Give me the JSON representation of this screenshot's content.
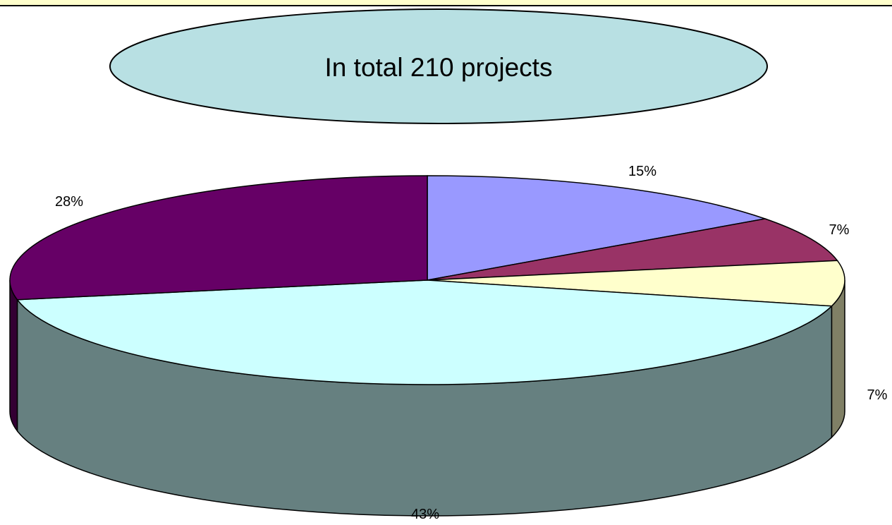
{
  "callout": {
    "text": "In total 210 projects",
    "fill": "#b8e0e3"
  },
  "chart_data": {
    "type": "pie",
    "title": "",
    "slices": [
      {
        "label": "15%",
        "value": 15,
        "color": "#9999ff"
      },
      {
        "label": "7%",
        "value": 7,
        "color": "#993366"
      },
      {
        "label": "7%",
        "value": 7,
        "color": "#ffffcc"
      },
      {
        "label": "43%",
        "value": 43,
        "color": "#ccffff"
      },
      {
        "label": "28%",
        "value": 28,
        "color": "#660066"
      }
    ]
  },
  "frame": {
    "band_color": "#ffffcc"
  }
}
